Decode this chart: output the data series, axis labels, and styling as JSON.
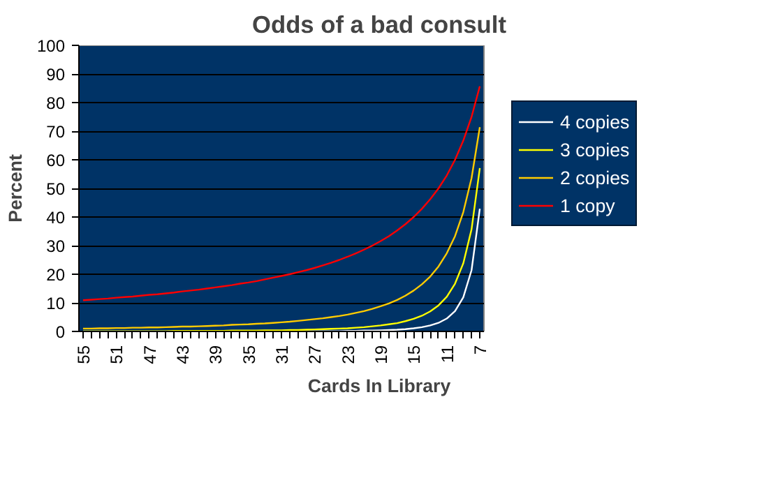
{
  "chart_data": {
    "type": "line",
    "title": "Odds of a bad consult",
    "xlabel": "Cards In Library",
    "ylabel": "Percent",
    "categories": [
      "55",
      null,
      null,
      null,
      "51",
      null,
      null,
      null,
      "47",
      null,
      null,
      null,
      "43",
      null,
      null,
      null,
      "39",
      null,
      null,
      null,
      "35",
      null,
      null,
      null,
      "31",
      null,
      null,
      null,
      "27",
      null,
      null,
      null,
      "23",
      null,
      null,
      null,
      "19",
      null,
      null,
      null,
      "15",
      null,
      null,
      null,
      "11",
      null,
      null,
      null,
      "7"
    ],
    "series": [
      {
        "name": "4 copies",
        "color": "#ffffff",
        "values": [
          0.0,
          0.0,
          0.0,
          0.0,
          0.0,
          0.0,
          0.0,
          0.0,
          0.0,
          0.0,
          0.0,
          0.0,
          0.0,
          0.0,
          0.0,
          0.0,
          0.0,
          0.0,
          0.0,
          0.0,
          0.0,
          0.0,
          0.0,
          0.0,
          0.0,
          0.1,
          0.1,
          0.1,
          0.1,
          0.1,
          0.1,
          0.1,
          0.2,
          0.2,
          0.3,
          0.3,
          0.4,
          0.5,
          0.6,
          0.8,
          1.1,
          1.5,
          2.1,
          3.0,
          4.5,
          7.1,
          11.9,
          21.4,
          42.9
        ]
      },
      {
        "name": "3 copies",
        "color": "#ffff00",
        "values": [
          0.1,
          0.1,
          0.1,
          0.1,
          0.1,
          0.1,
          0.1,
          0.1,
          0.1,
          0.1,
          0.1,
          0.2,
          0.2,
          0.2,
          0.2,
          0.2,
          0.2,
          0.2,
          0.3,
          0.3,
          0.3,
          0.3,
          0.4,
          0.4,
          0.4,
          0.5,
          0.5,
          0.6,
          0.7,
          0.8,
          0.9,
          1.0,
          1.1,
          1.3,
          1.5,
          1.8,
          2.1,
          2.5,
          2.9,
          3.6,
          4.4,
          5.5,
          7.0,
          9.1,
          12.1,
          16.7,
          23.8,
          35.7,
          57.1
        ]
      },
      {
        "name": "2 copies",
        "color": "#ffcc00",
        "values": [
          1.0,
          1.0,
          1.1,
          1.1,
          1.2,
          1.2,
          1.3,
          1.3,
          1.4,
          1.4,
          1.5,
          1.6,
          1.7,
          1.7,
          1.8,
          1.9,
          2.0,
          2.1,
          2.3,
          2.4,
          2.5,
          2.7,
          2.8,
          3.0,
          3.2,
          3.4,
          3.7,
          4.0,
          4.3,
          4.6,
          5.0,
          5.4,
          5.9,
          6.5,
          7.1,
          7.9,
          8.8,
          9.8,
          11.0,
          12.5,
          14.3,
          16.5,
          19.2,
          22.7,
          27.3,
          33.3,
          41.7,
          53.6,
          71.4
        ]
      },
      {
        "name": "1 copy",
        "color": "#ff0000",
        "values": [
          10.9,
          11.1,
          11.3,
          11.5,
          11.8,
          12.0,
          12.2,
          12.5,
          12.8,
          13.0,
          13.3,
          13.6,
          14.0,
          14.3,
          14.6,
          15.0,
          15.4,
          15.8,
          16.2,
          16.7,
          17.1,
          17.6,
          18.2,
          18.8,
          19.4,
          20.0,
          20.7,
          21.4,
          22.2,
          23.1,
          24.0,
          25.0,
          26.1,
          27.3,
          28.6,
          30.0,
          31.6,
          33.3,
          35.3,
          37.5,
          40.0,
          42.9,
          46.2,
          50.0,
          54.5,
          60.0,
          66.7,
          75.0,
          85.7
        ]
      }
    ],
    "ylim": [
      0,
      100
    ],
    "yticks": [
      0,
      10,
      20,
      30,
      40,
      50,
      60,
      70,
      80,
      90,
      100
    ],
    "grid": "y",
    "legend": "right"
  }
}
